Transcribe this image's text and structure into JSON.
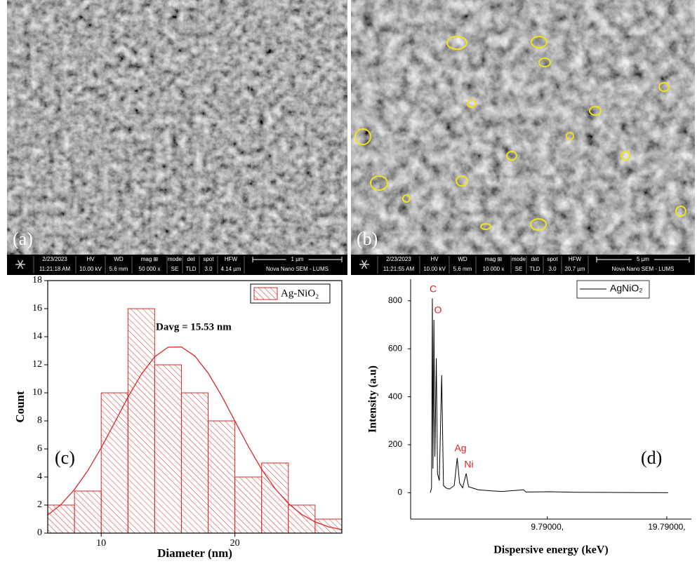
{
  "figure": {
    "panels": [
      {
        "label": "(a)",
        "info": {
          "date": "2/23/2023",
          "time": "11:21:18 AM",
          "fields": [
            {
              "name": "HV",
              "value": "10.00 kV"
            },
            {
              "name": "WD",
              "value": "5.6 mm"
            },
            {
              "name": "mag ⊞",
              "value": "50 000 x"
            },
            {
              "name": "mode",
              "value": "SE"
            },
            {
              "name": "det",
              "value": "TLD"
            },
            {
              "name": "spot",
              "value": "3.0"
            },
            {
              "name": "HFW",
              "value": "4.14 µm"
            }
          ],
          "scale": "1 µm",
          "instrument": "Nova Nano SEM - LUMS"
        }
      },
      {
        "label": "(b)",
        "info": {
          "date": "2/23/2023",
          "time": "11:21:55 AM",
          "fields": [
            {
              "name": "HV",
              "value": "10.00 kV"
            },
            {
              "name": "WD",
              "value": "5.6 mm"
            },
            {
              "name": "mag ⊞",
              "value": "10 000 x"
            },
            {
              "name": "mode",
              "value": "SE"
            },
            {
              "name": "det",
              "value": "TLD"
            },
            {
              "name": "spot",
              "value": "3.0"
            },
            {
              "name": "HFW",
              "value": "20.7 µm"
            }
          ],
          "scale": "5 µm",
          "instrument": "Nova Nano SEM - LUMS"
        }
      }
    ]
  },
  "chart_data": [
    {
      "type": "histogram",
      "panel_label": "(c)",
      "x_label": "Diameter (nm)",
      "y_label": "Count",
      "annotation": "Davg = 15.53 nm",
      "legend": "Ag-NiO₂",
      "legend_position": "top-right",
      "color": "#d42a2a",
      "bins": [
        6,
        8,
        10,
        12,
        14,
        16,
        18,
        20,
        22,
        24,
        26,
        28
      ],
      "values": [
        2,
        3,
        10,
        16,
        12,
        10,
        8,
        4,
        5,
        2,
        1
      ],
      "fit": {
        "x": [
          6,
          7,
          8,
          9,
          10,
          11,
          12,
          13,
          14,
          15,
          16,
          17,
          18,
          19,
          20,
          21,
          22,
          23,
          24,
          25,
          26,
          27,
          28
        ],
        "values": [
          1.29,
          2.05,
          3.11,
          4.46,
          6.08,
          7.87,
          9.69,
          11.32,
          12.57,
          13.25,
          13.27,
          12.63,
          11.41,
          9.8,
          7.99,
          6.19,
          4.55,
          3.18,
          2.11,
          1.33,
          0.8,
          0.45,
          0.25
        ]
      },
      "xlim": [
        6,
        28
      ],
      "ylim": [
        0,
        18
      ],
      "xticks": [
        10,
        20
      ],
      "yticks": [
        0,
        2,
        4,
        6,
        8,
        10,
        12,
        14,
        16,
        18
      ]
    },
    {
      "type": "line",
      "panel_label": "(d)",
      "x_label": "Dispersive energy (keV)",
      "y_label": "Intensity (a.u)",
      "legend_position": "top-right",
      "series": [
        {
          "name": "AgNiO₂",
          "color": "#000000",
          "x": [
            0,
            0.1,
            0.17,
            0.22,
            0.3,
            0.38,
            0.5,
            0.6,
            0.75,
            0.95,
            1.1,
            1.3,
            1.6,
            2.0,
            2.25,
            2.45,
            2.7,
            3.0,
            3.2,
            4,
            5,
            6,
            7.8,
            8,
            10,
            12,
            15,
            19.9
          ],
          "values": [
            0,
            20,
            810,
            100,
            720,
            150,
            560,
            80,
            50,
            490,
            30,
            20,
            15,
            30,
            145,
            40,
            20,
            80,
            25,
            12,
            8,
            5,
            12,
            3,
            4,
            2,
            1,
            0
          ]
        }
      ],
      "peak_labels": [
        "C",
        "O",
        "Ag",
        "Ni"
      ],
      "peak_color": "#e02020",
      "xlim": [
        -1.65,
        21.85
      ],
      "ylim": [
        -110,
        890
      ],
      "xticks": [
        {
          "value": 9.79,
          "label": "9.79000,"
        },
        {
          "value": 19.79,
          "label": "19.79000,"
        }
      ],
      "yticks": [
        0,
        200,
        400,
        600,
        800
      ]
    }
  ]
}
